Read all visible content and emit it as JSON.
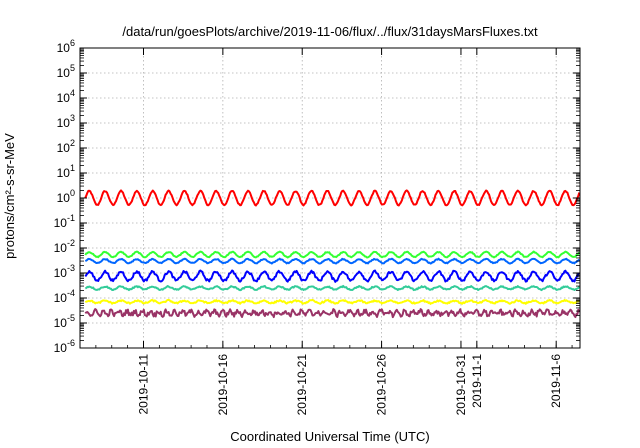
{
  "chart_data": {
    "type": "line",
    "title": "/data/run/goesPlots/archive/2019-11-06/flux/../flux/31daysMarsFluxes.txt",
    "xlabel": "Coordinated Universal Time (UTC)",
    "ylabel": "protons/cm²-s-sr-MeV",
    "yscale": "log",
    "ylim": [
      1e-06,
      1000000.0
    ],
    "y_ticks": [
      {
        "base": "10",
        "exp": "-6"
      },
      {
        "base": "10",
        "exp": "-5"
      },
      {
        "base": "10",
        "exp": "-4"
      },
      {
        "base": "10",
        "exp": "-3"
      },
      {
        "base": "10",
        "exp": "-2"
      },
      {
        "base": "10",
        "exp": "-1"
      },
      {
        "base": "10",
        "exp": "0"
      },
      {
        "base": "10",
        "exp": "1"
      },
      {
        "base": "10",
        "exp": "2"
      },
      {
        "base": "10",
        "exp": "3"
      },
      {
        "base": "10",
        "exp": "4"
      },
      {
        "base": "10",
        "exp": "5"
      },
      {
        "base": "10",
        "exp": "6"
      }
    ],
    "xlim": [
      "2019-10-07T00:00",
      "2019-11-07T12:00"
    ],
    "x_ticks": [
      {
        "date": "2019-10-11",
        "label": "2019-10-11"
      },
      {
        "date": "2019-10-16",
        "label": "2019-10-16"
      },
      {
        "date": "2019-10-21",
        "label": "2019-10-21"
      },
      {
        "date": "2019-10-26",
        "label": "2019-10-26"
      },
      {
        "date": "2019-10-31",
        "label": "2019-10-31"
      },
      {
        "date": "2019-11-01",
        "label": "2019-11-1"
      },
      {
        "date": "2019-11-06",
        "label": "2019-11-6"
      }
    ],
    "grid": true,
    "legend": "none",
    "series": [
      {
        "color": "#ff0000",
        "level": 1.0,
        "amplitude": 0.28,
        "period_days": 1.0,
        "noise": 0.05
      },
      {
        "color": "#33ff33",
        "level": 0.0055,
        "amplitude": 0.1,
        "period_days": 1.0,
        "noise": 0.04
      },
      {
        "color": "#0066ff",
        "level": 0.003,
        "amplitude": 0.08,
        "period_days": 1.0,
        "noise": 0.04
      },
      {
        "color": "#0000ff",
        "level": 0.00075,
        "amplitude": 0.18,
        "period_days": 1.0,
        "noise": 0.1
      },
      {
        "color": "#33cc99",
        "level": 0.00025,
        "amplitude": 0.06,
        "period_days": 1.0,
        "noise": 0.05
      },
      {
        "color": "#ffff00",
        "level": 7e-05,
        "amplitude": 0.05,
        "period_days": 1.0,
        "noise": 0.06
      },
      {
        "color": "#993366",
        "level": 2.5e-05,
        "amplitude": 0.08,
        "period_days": 0.5,
        "noise": 0.18
      }
    ]
  }
}
